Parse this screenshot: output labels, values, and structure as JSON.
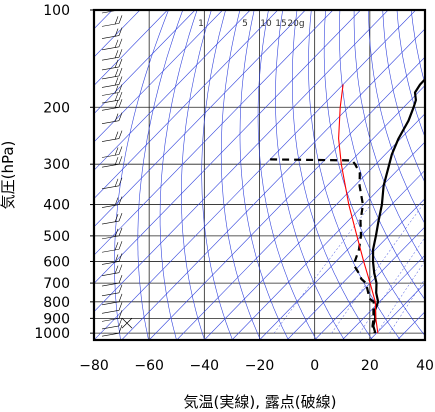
{
  "chart_data": {
    "type": "line",
    "title": "",
    "xlabel": "気温(実線), 露点(破線)",
    "ylabel": "気圧(hPa)",
    "xlim": [
      -80,
      40
    ],
    "ylim": [
      1050,
      100
    ],
    "y_scale": "log",
    "x_ticks": [
      "−80",
      "−60",
      "−40",
      "−20",
      "0",
      "20",
      "40"
    ],
    "y_ticks": [
      "100",
      "200",
      "300",
      "400",
      "500",
      "600",
      "700",
      "800",
      "900",
      "1000"
    ],
    "mixing_ratio_labels": [
      "1",
      "5",
      "10",
      "15",
      "20g"
    ],
    "series": [
      {
        "style": "solid",
        "color": "#000000",
        "points": [
          [
            100,
            -57.5
          ],
          [
            110,
            -57.3
          ],
          [
            120,
            -54.6
          ],
          [
            130,
            -52.6
          ],
          [
            140,
            -51.6
          ],
          [
            150,
            -52.8
          ],
          [
            160,
            -52.2
          ],
          [
            170,
            -52.1
          ],
          [
            180,
            -51.1
          ],
          [
            190,
            -48.1
          ],
          [
            200,
            -46.4
          ],
          [
            220,
            -43.5
          ],
          [
            250,
            -40.8
          ],
          [
            280,
            -37.6
          ],
          [
            300,
            -35.1
          ],
          [
            350,
            -29.5
          ],
          [
            400,
            -23.5
          ],
          [
            450,
            -18.9
          ],
          [
            500,
            -14.6
          ],
          [
            550,
            -10.9
          ],
          [
            600,
            -6.6
          ],
          [
            650,
            -2.2
          ],
          [
            700,
            2.3
          ],
          [
            750,
            5.6
          ],
          [
            800,
            9.5
          ],
          [
            850,
            11.4
          ],
          [
            900,
            14.3
          ],
          [
            950,
            16.3
          ],
          [
            1000,
            19.6
          ]
        ]
      },
      {
        "style": "dashed",
        "color": "#000000",
        "points": [
          [
            290,
            -80
          ],
          [
            292,
            -50
          ],
          [
            300,
            -47.5
          ],
          [
            320,
            -42.6
          ],
          [
            350,
            -38.2
          ],
          [
            400,
            -30.4
          ],
          [
            450,
            -25.4
          ],
          [
            500,
            -20.0
          ],
          [
            550,
            -16.0
          ],
          [
            600,
            -13.2
          ],
          [
            620,
            -11.7
          ],
          [
            650,
            -7.9
          ],
          [
            680,
            -4.6
          ],
          [
            700,
            -1.5
          ],
          [
            750,
            2.7
          ],
          [
            780,
            5.0
          ],
          [
            800,
            7.9
          ],
          [
            850,
            10.8
          ],
          [
            900,
            13.7
          ],
          [
            950,
            16.0
          ],
          [
            1000,
            19.1
          ]
        ]
      },
      {
        "style": "solid",
        "color": "#ff0000",
        "points": [
          [
            170,
            -80
          ],
          [
            200,
            -73
          ],
          [
            250,
            -62.5
          ],
          [
            300,
            -52.5
          ],
          [
            400,
            -35.5
          ],
          [
            500,
            -21.5
          ],
          [
            600,
            -10.0
          ],
          [
            700,
            0
          ],
          [
            800,
            8.5
          ],
          [
            900,
            14.5
          ],
          [
            1000,
            20.5
          ]
        ]
      }
    ],
    "grid": true,
    "legend": "none"
  }
}
